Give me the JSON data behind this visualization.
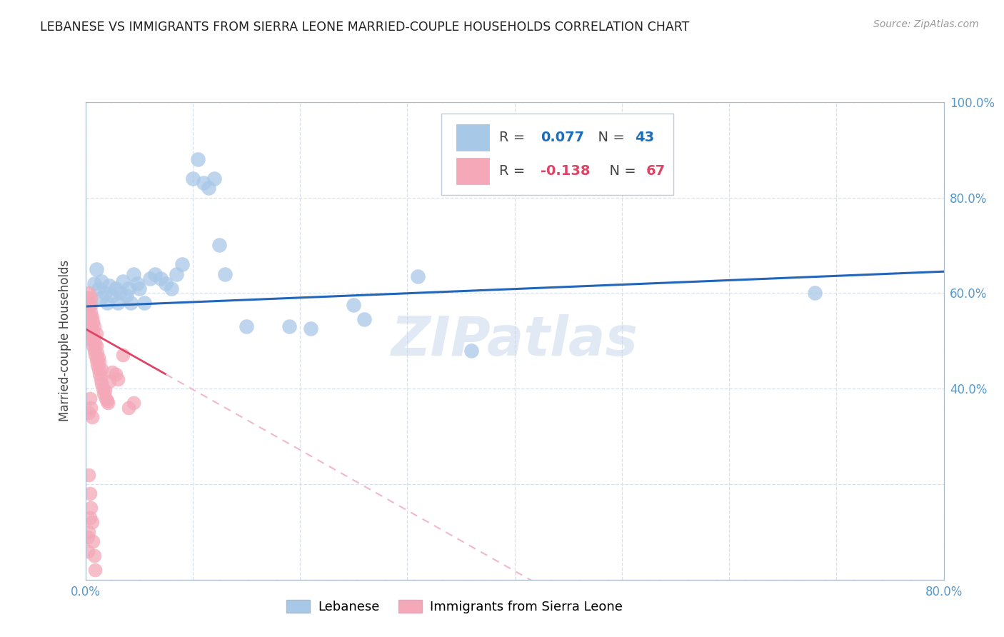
{
  "title": "LEBANESE VS IMMIGRANTS FROM SIERRA LEONE MARRIED-COUPLE HOUSEHOLDS CORRELATION CHART",
  "source": "Source: ZipAtlas.com",
  "ylabel": "Married-couple Households",
  "watermark": "ZIPatlas",
  "xlim": [
    0,
    0.8
  ],
  "ylim": [
    0,
    1.0
  ],
  "blue_color": "#a8c8e8",
  "pink_color": "#f4a8b8",
  "trendline_blue_color": "#2266bb",
  "trendline_pink_solid_color": "#dd4466",
  "trendline_pink_dashed_color": "#f0b8c8",
  "grid_color": "#d8e0ec",
  "background_color": "#ffffff",
  "axis_color": "#aabbcc",
  "tick_label_color": "#5599cc",
  "blue_x": [
    0.005,
    0.008,
    0.01,
    0.012,
    0.015,
    0.015,
    0.018,
    0.02,
    0.022,
    0.025,
    0.028,
    0.03,
    0.032,
    0.035,
    0.038,
    0.04,
    0.042,
    0.045,
    0.048,
    0.05,
    0.055,
    0.06,
    0.065,
    0.07,
    0.075,
    0.08,
    0.085,
    0.09,
    0.1,
    0.105,
    0.11,
    0.115,
    0.12,
    0.125,
    0.13,
    0.15,
    0.19,
    0.21,
    0.25,
    0.26,
    0.31,
    0.36,
    0.68
  ],
  "blue_y": [
    0.575,
    0.62,
    0.65,
    0.61,
    0.59,
    0.625,
    0.6,
    0.58,
    0.615,
    0.595,
    0.61,
    0.58,
    0.6,
    0.625,
    0.595,
    0.61,
    0.58,
    0.64,
    0.62,
    0.61,
    0.58,
    0.63,
    0.64,
    0.63,
    0.62,
    0.61,
    0.64,
    0.66,
    0.84,
    0.88,
    0.83,
    0.82,
    0.84,
    0.7,
    0.64,
    0.53,
    0.53,
    0.525,
    0.575,
    0.545,
    0.635,
    0.48,
    0.6
  ],
  "pink_x": [
    0.001,
    0.001,
    0.002,
    0.002,
    0.002,
    0.003,
    0.003,
    0.003,
    0.003,
    0.004,
    0.004,
    0.004,
    0.005,
    0.005,
    0.005,
    0.005,
    0.006,
    0.006,
    0.006,
    0.007,
    0.007,
    0.007,
    0.008,
    0.008,
    0.008,
    0.009,
    0.009,
    0.01,
    0.01,
    0.01,
    0.011,
    0.011,
    0.012,
    0.012,
    0.013,
    0.013,
    0.014,
    0.015,
    0.015,
    0.016,
    0.017,
    0.018,
    0.019,
    0.02,
    0.021,
    0.022,
    0.025,
    0.028,
    0.03,
    0.035,
    0.04,
    0.045,
    0.003,
    0.004,
    0.005,
    0.006,
    0.007,
    0.008,
    0.009,
    0.002,
    0.003,
    0.004,
    0.005,
    0.006,
    0.002,
    0.003,
    0.004
  ],
  "pink_y": [
    0.56,
    0.59,
    0.545,
    0.57,
    0.59,
    0.53,
    0.555,
    0.575,
    0.6,
    0.52,
    0.55,
    0.575,
    0.51,
    0.53,
    0.56,
    0.59,
    0.5,
    0.525,
    0.55,
    0.49,
    0.515,
    0.54,
    0.48,
    0.505,
    0.53,
    0.47,
    0.495,
    0.46,
    0.49,
    0.515,
    0.45,
    0.475,
    0.44,
    0.465,
    0.43,
    0.455,
    0.42,
    0.41,
    0.44,
    0.4,
    0.39,
    0.395,
    0.38,
    0.375,
    0.37,
    0.415,
    0.435,
    0.43,
    0.42,
    0.47,
    0.36,
    0.37,
    0.22,
    0.18,
    0.15,
    0.12,
    0.08,
    0.05,
    0.02,
    0.09,
    0.35,
    0.38,
    0.36,
    0.34,
    0.06,
    0.1,
    0.13
  ]
}
